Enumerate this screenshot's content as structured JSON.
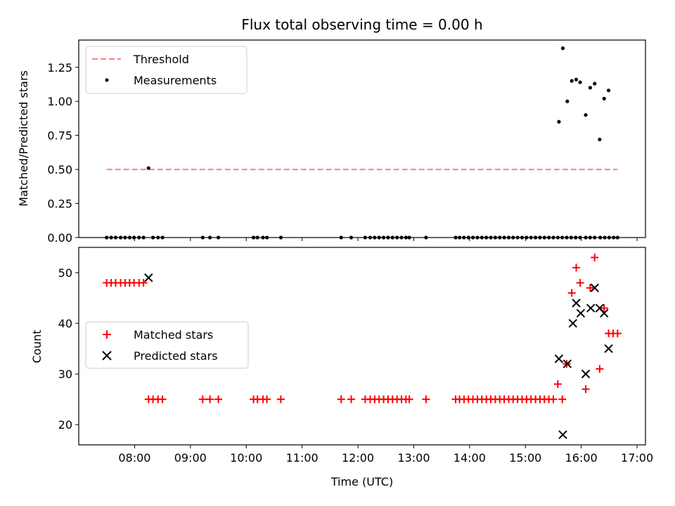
{
  "chart_data": [
    {
      "type": "scatter",
      "title": "Flux total observing time = 0.00 h",
      "xlabel": "",
      "ylabel": "Matched/Predicted stars",
      "xlim": [
        7.0,
        17.15
      ],
      "ylim": [
        0.0,
        1.45
      ],
      "yticks": [
        0.0,
        0.25,
        0.5,
        0.75,
        1.0,
        1.25
      ],
      "ytick_labels": [
        "0.00",
        "0.25",
        "0.50",
        "0.75",
        "1.00",
        "1.25"
      ],
      "legend": [
        "Threshold",
        "Measurements"
      ],
      "threshold": {
        "name": "Threshold",
        "value": 0.5,
        "x_range": [
          7.5,
          16.65
        ],
        "color": "#ff8080"
      },
      "series": [
        {
          "name": "Measurements",
          "color": "#000000",
          "marker": "dot",
          "x": [
            7.5,
            7.58,
            7.66,
            7.75,
            7.83,
            7.91,
            7.99,
            8.08,
            8.16,
            8.25,
            8.33,
            8.42,
            8.5,
            9.22,
            9.35,
            9.5,
            10.13,
            10.2,
            10.3,
            10.37,
            10.62,
            11.7,
            11.88,
            12.13,
            12.22,
            12.3,
            12.38,
            12.46,
            12.54,
            12.62,
            12.7,
            12.78,
            12.86,
            12.92,
            13.22,
            13.75,
            13.82,
            13.9,
            13.98,
            14.06,
            14.14,
            14.22,
            14.3,
            14.38,
            14.46,
            14.54,
            14.62,
            14.7,
            14.78,
            14.86,
            14.94,
            15.02,
            15.1,
            15.18,
            15.26,
            15.34,
            15.42,
            15.5,
            15.58,
            15.66,
            15.74,
            15.82,
            15.9,
            15.98,
            16.08,
            16.16,
            16.24,
            16.34,
            16.42,
            16.5,
            16.58,
            16.65,
            15.6,
            15.67,
            15.75,
            15.83,
            15.91,
            15.98,
            16.08,
            16.16,
            16.24,
            16.33,
            16.41,
            16.49
          ],
          "y": [
            0,
            0,
            0,
            0,
            0,
            0,
            0,
            0,
            0,
            0.51,
            0,
            0,
            0,
            0,
            0,
            0,
            0,
            0,
            0,
            0,
            0,
            0,
            0,
            0,
            0,
            0,
            0,
            0,
            0,
            0,
            0,
            0,
            0,
            0,
            0,
            0,
            0,
            0,
            0,
            0,
            0,
            0,
            0,
            0,
            0,
            0,
            0,
            0,
            0,
            0,
            0,
            0,
            0,
            0,
            0,
            0,
            0,
            0,
            0,
            0,
            0,
            0,
            0,
            0,
            0,
            0,
            0,
            0,
            0,
            0,
            0,
            0,
            0.85,
            1.39,
            1.0,
            1.15,
            1.16,
            1.14,
            0.9,
            1.1,
            1.13,
            0.72,
            1.02,
            1.08
          ]
        }
      ]
    },
    {
      "type": "scatter",
      "title": "",
      "xlabel": "Time (UTC)",
      "ylabel": "Count",
      "xlim": [
        7.0,
        17.15
      ],
      "ylim": [
        16.0,
        55.0
      ],
      "xticks": [
        8,
        9,
        10,
        11,
        12,
        13,
        14,
        15,
        16,
        17
      ],
      "xtick_labels": [
        "08:00",
        "09:00",
        "10:00",
        "11:00",
        "12:00",
        "13:00",
        "14:00",
        "15:00",
        "16:00",
        "17:00"
      ],
      "yticks": [
        20,
        30,
        40,
        50
      ],
      "ytick_labels": [
        "20",
        "30",
        "40",
        "50"
      ],
      "legend": [
        "Matched stars",
        "Predicted stars"
      ],
      "series": [
        {
          "name": "Matched stars",
          "color": "#ff0000",
          "marker": "plus",
          "x": [
            7.5,
            7.58,
            7.66,
            7.75,
            7.83,
            7.91,
            7.99,
            8.08,
            8.16,
            8.25,
            8.33,
            8.42,
            8.5,
            9.22,
            9.35,
            9.5,
            10.13,
            10.2,
            10.3,
            10.37,
            10.62,
            11.7,
            11.88,
            12.13,
            12.22,
            12.3,
            12.38,
            12.46,
            12.54,
            12.62,
            12.7,
            12.78,
            12.86,
            12.92,
            13.22,
            13.75,
            13.82,
            13.9,
            13.98,
            14.06,
            14.14,
            14.22,
            14.3,
            14.38,
            14.46,
            14.54,
            14.62,
            14.7,
            14.78,
            14.86,
            14.94,
            15.02,
            15.1,
            15.18,
            15.26,
            15.34,
            15.42,
            15.5,
            15.58,
            15.66,
            15.74,
            15.83,
            15.91,
            15.98,
            16.08,
            16.16,
            16.24,
            16.33,
            16.41,
            16.49,
            16.57,
            16.65
          ],
          "y": [
            48,
            48,
            48,
            48,
            48,
            48,
            48,
            48,
            48,
            25,
            25,
            25,
            25,
            25,
            25,
            25,
            25,
            25,
            25,
            25,
            25,
            25,
            25,
            25,
            25,
            25,
            25,
            25,
            25,
            25,
            25,
            25,
            25,
            25,
            25,
            25,
            25,
            25,
            25,
            25,
            25,
            25,
            25,
            25,
            25,
            25,
            25,
            25,
            25,
            25,
            25,
            25,
            25,
            25,
            25,
            25,
            25,
            25,
            28,
            25,
            32,
            46,
            51,
            48,
            27,
            47,
            53,
            31,
            43,
            38,
            38,
            38
          ]
        },
        {
          "name": "Predicted stars",
          "color": "#000000",
          "marker": "cross",
          "x": [
            8.25,
            15.6,
            15.67,
            15.75,
            15.85,
            15.91,
            15.99,
            16.08,
            16.17,
            16.24,
            16.33,
            16.41,
            16.49
          ],
          "y": [
            49,
            33,
            18,
            32,
            40,
            44,
            42,
            30,
            43,
            47,
            43,
            42,
            35
          ]
        }
      ]
    }
  ]
}
